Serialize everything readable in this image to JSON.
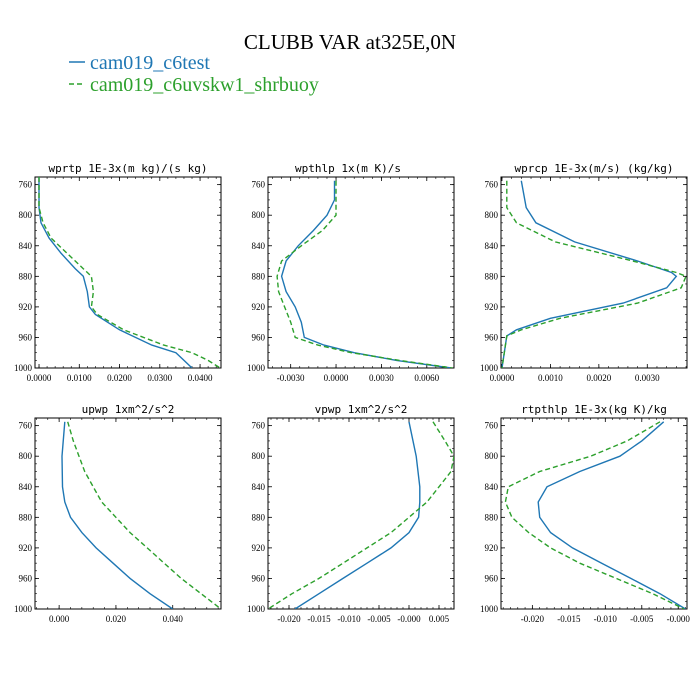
{
  "figure": {
    "title": "CLUBB VAR at325E,0N",
    "legend": [
      {
        "label": "cam019_c6test",
        "color": "#1f77b4",
        "dash": "solid"
      },
      {
        "label": "cam019_c6uvskw1_shrbuoy",
        "color": "#2ca02c",
        "dash": "dashed"
      }
    ]
  },
  "chart_data": [
    {
      "type": "line",
      "title": "wprtp  1E-3x(m kg)/(s kg)",
      "ylim": [
        1000,
        750
      ],
      "yticks": [
        760,
        800,
        840,
        880,
        920,
        960,
        1000
      ],
      "xlim": [
        -0.001,
        0.0452
      ],
      "xticks": [
        0.0,
        0.01,
        0.02,
        0.03,
        0.04
      ],
      "xticklabels": [
        "0.0000",
        "0.0100",
        "0.0200",
        "0.0300",
        "0.0400"
      ],
      "series": [
        {
          "name": "cam019_c6test",
          "y": [
            750,
            790,
            810,
            830,
            850,
            870,
            880,
            900,
            920,
            930,
            950,
            970,
            980,
            990,
            1000
          ],
          "x": [
            0.0,
            0.0,
            0.0005,
            0.0025,
            0.0055,
            0.009,
            0.011,
            0.012,
            0.0125,
            0.014,
            0.02,
            0.028,
            0.034,
            0.036,
            0.038
          ]
        },
        {
          "name": "cam019_c6uvskw1_shrbuoy",
          "y": [
            750,
            790,
            810,
            830,
            850,
            870,
            880,
            900,
            920,
            930,
            950,
            970,
            980,
            990,
            1000
          ],
          "x": [
            0.0,
            0.0,
            0.001,
            0.003,
            0.007,
            0.011,
            0.013,
            0.0135,
            0.013,
            0.0145,
            0.021,
            0.031,
            0.038,
            0.042,
            0.045
          ]
        }
      ]
    },
    {
      "type": "line",
      "title": "wpthlp  1x(m K)/s",
      "ylim": [
        1000,
        750
      ],
      "yticks": [
        760,
        800,
        840,
        880,
        920,
        960,
        1000
      ],
      "xlim": [
        -0.0045,
        0.0078
      ],
      "xticks": [
        -0.003,
        0.0,
        0.003,
        0.006
      ],
      "xticklabels": [
        "-0.0030",
        "0.0000",
        "0.0030",
        "0.0060"
      ],
      "series": [
        {
          "name": "cam019_c6test",
          "y": [
            755,
            780,
            800,
            820,
            840,
            860,
            880,
            900,
            920,
            940,
            960,
            970,
            980,
            990,
            1000
          ],
          "x": [
            -0.0001,
            -0.0001,
            -0.0006,
            -0.0015,
            -0.0025,
            -0.0033,
            -0.0036,
            -0.0033,
            -0.0027,
            -0.0023,
            -0.0021,
            -0.0008,
            0.0012,
            0.004,
            0.0076
          ]
        },
        {
          "name": "cam019_c6uvskw1_shrbuoy",
          "y": [
            755,
            780,
            800,
            820,
            840,
            860,
            880,
            900,
            920,
            940,
            960,
            970,
            980,
            990,
            1000
          ],
          "x": [
            0.0,
            0.0,
            0.0,
            -0.0009,
            -0.0023,
            -0.0036,
            -0.0039,
            -0.0038,
            -0.0034,
            -0.003,
            -0.0027,
            -0.0012,
            0.001,
            0.0042,
            0.0077
          ]
        }
      ]
    },
    {
      "type": "line",
      "title": "wprcp  1E-3x(m/s) (kg/kg)",
      "ylim": [
        1000,
        750
      ],
      "yticks": [
        760,
        800,
        840,
        880,
        920,
        960,
        1000
      ],
      "xlim": [
        -2e-05,
        0.00382
      ],
      "xticks": [
        0.0,
        0.001,
        0.002,
        0.003
      ],
      "xticklabels": [
        "0.0000",
        "0.0010",
        "0.0020",
        "0.0030"
      ],
      "series": [
        {
          "name": "cam019_c6test",
          "y": [
            755,
            790,
            810,
            835,
            860,
            875,
            880,
            895,
            915,
            935,
            950,
            958,
            1000
          ],
          "x": [
            0.0004,
            0.0005,
            0.0007,
            0.0015,
            0.0028,
            0.0035,
            0.0036,
            0.0034,
            0.0025,
            0.001,
            0.0003,
            0.0001,
            0.0
          ]
        },
        {
          "name": "cam019_c6uvskw1_shrbuoy",
          "y": [
            755,
            790,
            810,
            835,
            860,
            875,
            880,
            895,
            915,
            935,
            950,
            958,
            1000
          ],
          "x": [
            0.0001,
            0.0001,
            0.0003,
            0.0011,
            0.0027,
            0.0036,
            0.0038,
            0.0037,
            0.0028,
            0.0012,
            0.0004,
            0.0001,
            0.0
          ]
        }
      ]
    },
    {
      "type": "line",
      "title": "upwp  1xm^2/s^2",
      "ylim": [
        1000,
        750
      ],
      "yticks": [
        760,
        800,
        840,
        880,
        920,
        960,
        1000
      ],
      "xlim": [
        -0.0085,
        0.057
      ],
      "xticks": [
        0.0,
        0.02,
        0.04
      ],
      "xticklabels": [
        "0.000",
        "0.020",
        "0.040"
      ],
      "series": [
        {
          "name": "cam019_c6test",
          "y": [
            755,
            800,
            840,
            860,
            880,
            900,
            920,
            940,
            960,
            980,
            1000
          ],
          "x": [
            0.002,
            0.001,
            0.0012,
            0.002,
            0.004,
            0.008,
            0.013,
            0.019,
            0.025,
            0.032,
            0.04
          ]
        },
        {
          "name": "cam019_c6uvskw1_shrbuoy",
          "y": [
            755,
            780,
            800,
            820,
            840,
            860,
            880,
            900,
            920,
            940,
            960,
            980,
            1000
          ],
          "x": [
            0.003,
            0.005,
            0.007,
            0.009,
            0.012,
            0.015,
            0.02,
            0.025,
            0.031,
            0.037,
            0.043,
            0.05,
            0.057
          ]
        }
      ]
    },
    {
      "type": "line",
      "title": "vpwp  1xm^2/s^2",
      "ylim": [
        1000,
        750
      ],
      "yticks": [
        760,
        800,
        840,
        880,
        920,
        960,
        1000
      ],
      "xlim": [
        -0.0235,
        0.0075
      ],
      "xticks": [
        -0.02,
        -0.015,
        -0.01,
        -0.005,
        0.0,
        0.005
      ],
      "xticklabels": [
        "-0.020",
        "-0.015",
        "-0.010",
        "-0.005",
        "-0.000",
        "0.005"
      ],
      "series": [
        {
          "name": "cam019_c6test",
          "y": [
            755,
            800,
            840,
            860,
            880,
            900,
            920,
            940,
            960,
            980,
            1000
          ],
          "x": [
            0.0,
            0.0012,
            0.0018,
            0.0018,
            0.0016,
            0.0,
            -0.003,
            -0.007,
            -0.011,
            -0.015,
            -0.019
          ]
        },
        {
          "name": "cam019_c6uvskw1_shrbuoy",
          "y": [
            755,
            780,
            800,
            820,
            840,
            860,
            880,
            900,
            920,
            940,
            960,
            980,
            1000
          ],
          "x": [
            0.004,
            0.006,
            0.0075,
            0.007,
            0.005,
            0.003,
            0.0,
            -0.003,
            -0.007,
            -0.011,
            -0.015,
            -0.0195,
            -0.0235
          ]
        }
      ]
    },
    {
      "type": "line",
      "title": "rtpthlp  1E-3x(kg K)/kg",
      "ylim": [
        1000,
        750
      ],
      "yticks": [
        760,
        800,
        840,
        880,
        920,
        960,
        1000
      ],
      "xlim": [
        -0.0243,
        0.0012
      ],
      "xticks": [
        -0.02,
        -0.015,
        -0.01,
        -0.005,
        0.0
      ],
      "xticklabels": [
        "-0.020",
        "-0.015",
        "-0.010",
        "-0.005",
        "-0.000"
      ],
      "series": [
        {
          "name": "cam019_c6test",
          "y": [
            755,
            780,
            800,
            820,
            840,
            860,
            880,
            900,
            920,
            940,
            960,
            980,
            1000
          ],
          "x": [
            -0.002,
            -0.005,
            -0.008,
            -0.0135,
            -0.018,
            -0.0192,
            -0.019,
            -0.0175,
            -0.0145,
            -0.0105,
            -0.0065,
            -0.0025,
            0.001
          ]
        },
        {
          "name": "cam019_c6uvskw1_shrbuoy",
          "y": [
            755,
            780,
            800,
            820,
            840,
            860,
            880,
            900,
            920,
            940,
            960,
            980,
            1000
          ],
          "x": [
            -0.0025,
            -0.007,
            -0.012,
            -0.019,
            -0.0233,
            -0.0237,
            -0.0228,
            -0.0205,
            -0.0175,
            -0.0135,
            -0.0085,
            -0.0035,
            0.0008
          ]
        }
      ]
    }
  ]
}
